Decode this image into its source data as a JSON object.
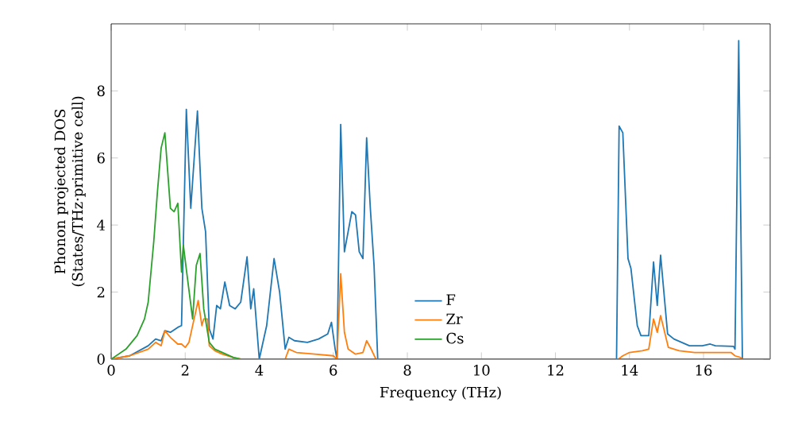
{
  "chart_data": {
    "type": "line",
    "xlabel": "Frequency (THz)",
    "ylabel": "Phonon projected DOS (States/THz·primitive cell)",
    "xlim": [
      0,
      17.8
    ],
    "ylim": [
      0,
      10
    ],
    "xticks": [
      0,
      2,
      4,
      6,
      8,
      10,
      12,
      14,
      16
    ],
    "yticks": [
      0,
      2,
      4,
      6,
      8
    ],
    "grid": false,
    "legend": "bottom",
    "marker": "none",
    "line_style": "solid",
    "series": [
      {
        "name": "F",
        "color": "#1f77b4",
        "x": [
          0,
          0.5,
          1.0,
          1.2,
          1.35,
          1.45,
          1.6,
          1.8,
          1.9,
          2.03,
          2.15,
          2.33,
          2.45,
          2.55,
          2.65,
          2.75,
          2.85,
          2.95,
          3.07,
          3.2,
          3.35,
          3.5,
          3.67,
          3.77,
          3.85,
          4.0,
          4.2,
          4.4,
          4.55,
          4.7,
          4.8,
          4.95,
          5.3,
          5.6,
          5.85,
          5.95,
          6.05,
          6.1,
          6.2,
          6.3,
          6.4,
          6.5,
          6.6,
          6.7,
          6.8,
          6.9,
          7.0,
          7.1,
          7.2,
          13.6,
          13.65,
          13.72,
          13.82,
          13.96,
          14.04,
          14.21,
          14.31,
          14.52,
          14.65,
          14.75,
          14.84,
          15.03,
          15.2,
          15.62,
          15.97,
          16.18,
          16.32,
          16.81,
          16.85,
          16.95,
          17.05,
          17.8
        ],
        "values": [
          0,
          0.1,
          0.4,
          0.6,
          0.55,
          0.85,
          0.8,
          0.95,
          1.0,
          7.45,
          4.5,
          7.4,
          4.5,
          3.8,
          0.9,
          0.6,
          1.6,
          1.5,
          2.3,
          1.6,
          1.5,
          1.7,
          3.05,
          1.5,
          2.1,
          0,
          1.0,
          3.0,
          2.0,
          0.3,
          0.65,
          0.55,
          0.5,
          0.6,
          0.75,
          1.1,
          0.3,
          0,
          7.0,
          3.2,
          3.8,
          4.4,
          4.3,
          3.2,
          3.0,
          6.6,
          4.5,
          2.8,
          0,
          0,
          0,
          6.95,
          6.75,
          3.0,
          2.7,
          1.0,
          0.7,
          0.7,
          2.9,
          1.6,
          3.1,
          0.75,
          0.6,
          0.4,
          0.4,
          0.45,
          0.4,
          0.38,
          0.3,
          9.5,
          0,
          0
        ]
      },
      {
        "name": "Zr",
        "color": "#ff7f0e",
        "x": [
          0,
          0.5,
          1.0,
          1.2,
          1.35,
          1.45,
          1.6,
          1.8,
          1.9,
          2.0,
          2.1,
          2.35,
          2.45,
          2.5,
          2.6,
          2.65,
          2.8,
          3.0,
          3.3,
          3.5,
          4.7,
          4.8,
          5.0,
          5.5,
          6.0,
          6.1,
          6.2,
          6.3,
          6.4,
          6.6,
          6.8,
          6.9,
          7.0,
          7.15,
          13.7,
          13.82,
          14.0,
          14.35,
          14.52,
          14.65,
          14.75,
          14.84,
          15.05,
          15.34,
          15.76,
          16.74,
          16.85,
          17.0,
          17.05,
          17.8
        ],
        "values": [
          0,
          0.1,
          0.3,
          0.5,
          0.4,
          0.85,
          0.65,
          0.45,
          0.45,
          0.35,
          0.5,
          1.75,
          1.0,
          1.2,
          1.2,
          0.4,
          0.25,
          0.15,
          0.05,
          0,
          0,
          0.3,
          0.2,
          0.15,
          0.1,
          0,
          2.55,
          0.8,
          0.3,
          0.15,
          0.2,
          0.55,
          0.35,
          0,
          0,
          0.1,
          0.2,
          0.25,
          0.3,
          1.2,
          0.8,
          1.3,
          0.35,
          0.25,
          0.2,
          0.2,
          0.1,
          0.05,
          0,
          0
        ]
      },
      {
        "name": "Cs",
        "color": "#2ca02c",
        "x": [
          0,
          0.4,
          0.7,
          0.9,
          1.0,
          1.15,
          1.25,
          1.35,
          1.45,
          1.6,
          1.7,
          1.8,
          1.9,
          1.95,
          2.05,
          2.2,
          2.3,
          2.4,
          2.5,
          2.65,
          2.8,
          3.1,
          3.3,
          3.5,
          17.8
        ],
        "values": [
          0,
          0.3,
          0.7,
          1.2,
          1.7,
          3.5,
          5.0,
          6.3,
          6.75,
          4.5,
          4.4,
          4.65,
          2.6,
          3.4,
          2.5,
          1.2,
          2.8,
          3.15,
          1.5,
          0.5,
          0.3,
          0.15,
          0.05,
          0,
          0
        ]
      }
    ]
  }
}
